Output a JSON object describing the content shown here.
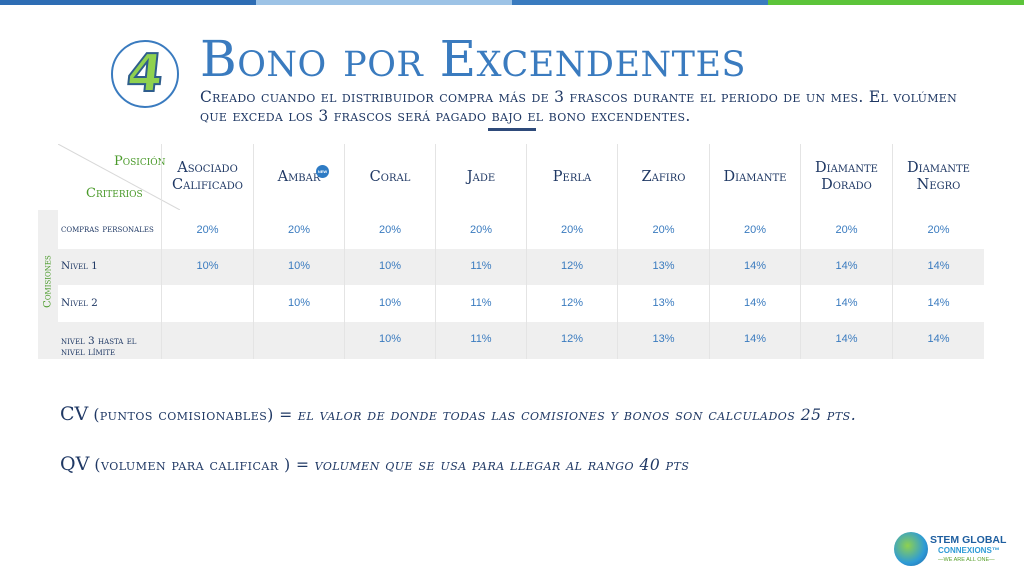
{
  "header": {
    "badge_number": "4",
    "title": "Bono por Excendentes",
    "subtitle": "Creado cuando el distribuidor compra más de 3 frascos durante el periodo de un mes. El volúmen que exceda los 3 frascos será pagado bajo el bono excendentes.",
    "new_badge": "NEW"
  },
  "colors": {
    "accent_blue": "#3a7bbf",
    "navy": "#1f3864",
    "green": "#4a9a2a",
    "bar": [
      "#2e6db4",
      "#9dc3e6",
      "#3a7bbf",
      "#5cc43a"
    ]
  },
  "table": {
    "position_label": "Posición",
    "criteria_label": "Criterios",
    "side_label": "Comisiones",
    "columns": [
      "Asociado Calificado",
      "Ambar",
      "Coral",
      "Jade",
      "Perla",
      "Zafiro",
      "Diamante",
      "Diamante Dorado",
      "Diamante Negro"
    ],
    "rows": [
      {
        "label": "compras personales",
        "values": [
          "20%",
          "20%",
          "20%",
          "20%",
          "20%",
          "20%",
          "20%",
          "20%",
          "20%"
        ]
      },
      {
        "label": "Nivel 1",
        "values": [
          "10%",
          "10%",
          "10%",
          "11%",
          "12%",
          "13%",
          "14%",
          "14%",
          "14%"
        ]
      },
      {
        "label": "Nivel 2",
        "values": [
          "",
          "10%",
          "10%",
          "11%",
          "12%",
          "13%",
          "14%",
          "14%",
          "14%"
        ]
      },
      {
        "label": "nivel 3 hasta el nivel límite",
        "values": [
          "",
          "",
          "10%",
          "11%",
          "12%",
          "13%",
          "14%",
          "14%",
          "14%"
        ]
      }
    ]
  },
  "definitions": {
    "cv_abbr": "CV",
    "cv_label": "(puntos comisionables) =",
    "cv_text": "el valor de donde todas las comisiones y bonos son calculados 25 pts.",
    "qv_abbr": "QV",
    "qv_label": "(volumen para calificar ) =",
    "qv_text": "volumen que se usa para llegar al rango 40 pts"
  },
  "logo": {
    "line1": "STEM GLOBAL",
    "line2": "CONNEXIONS™",
    "line3": "—WE ARE ALL ONE—"
  }
}
